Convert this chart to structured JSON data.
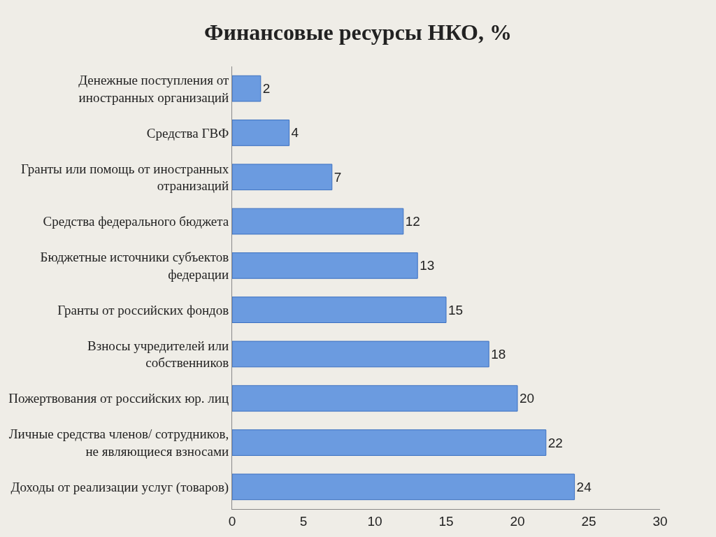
{
  "chart_data": {
    "type": "bar",
    "orientation": "horizontal",
    "title": "Финансовые ресурсы НКО, %",
    "categories": [
      "Денежные поступления от\nиностранных организаций",
      "Средства ГВФ",
      "Гранты или помощь от иностранных\nотранизаций",
      "Средства федерального бюджета",
      "Бюджетные источники субъектов\nфедерации",
      "Гранты от российских фондов",
      "Взносы учредителей или\nсобственников",
      "Пожертвования от российских юр. лиц",
      "Личные средства членов/ сотрудников,\nне являющиеся взносами",
      "Доходы от реализации услуг (товаров)"
    ],
    "values": [
      2,
      4,
      7,
      12,
      13,
      15,
      18,
      20,
      22,
      24
    ],
    "color": "#6b9be0",
    "xlim": [
      0,
      30
    ],
    "xticks": [
      0,
      5,
      10,
      15,
      20,
      25,
      30
    ],
    "data_labels": true
  }
}
